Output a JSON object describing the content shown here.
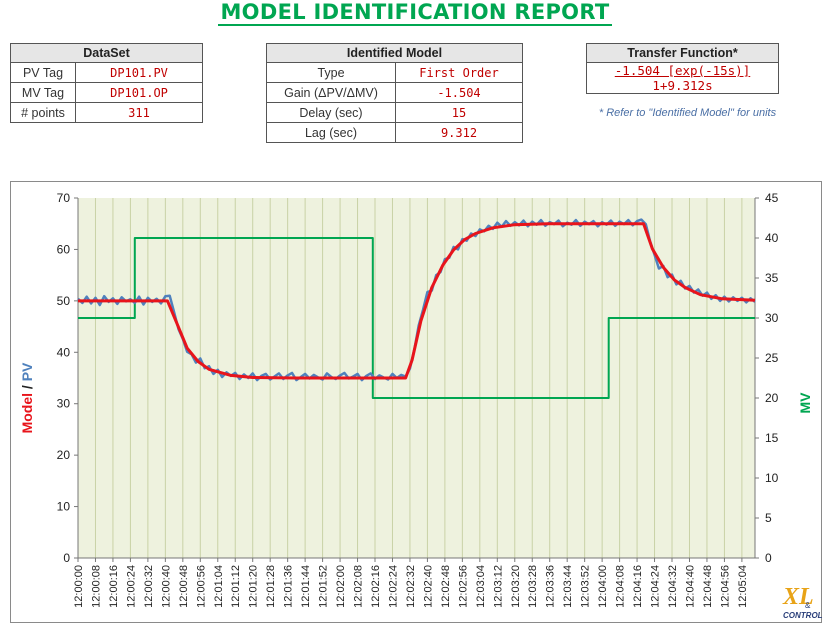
{
  "report": {
    "title": "MODEL IDENTIFICATION REPORT"
  },
  "dataset": {
    "header": "DataSet",
    "rows": [
      {
        "label": "PV Tag",
        "value": "DP101.PV"
      },
      {
        "label": "MV Tag",
        "value": "DP101.OP"
      },
      {
        "label": "# points",
        "value": "311"
      }
    ]
  },
  "identified_model": {
    "header": "Identified Model",
    "rows": [
      {
        "label": "Type",
        "value": "First Order"
      },
      {
        "label": "Gain (ΔPV/ΔMV)",
        "value": "-1.504"
      },
      {
        "label": "Delay (sec)",
        "value": "15"
      },
      {
        "label": "Lag (sec)",
        "value": "9.312"
      }
    ]
  },
  "transfer_function": {
    "header": "Transfer Function*",
    "numerator": "-1.504 [exp(-15s)]",
    "denominator": "1+9.312s",
    "note": "* Refer to \"Identified Model\" for units"
  },
  "colors": {
    "title": "#00a651",
    "plot_bg": "#eef2de",
    "model": "#e8141b",
    "pv": "#4f81bd",
    "mv": "#00a651",
    "value_text": "#c00000"
  },
  "logo": {
    "text_top": "XL",
    "text_bottom": "CONTROL",
    "amp": "&"
  },
  "chart_data": {
    "type": "line",
    "ylabel_left_parts": [
      "Model",
      " / ",
      "PV"
    ],
    "ylabel_right": "MV",
    "ylim_left": [
      0,
      70
    ],
    "ylim_right": [
      0,
      45
    ],
    "yticks_left": [
      0,
      10,
      20,
      30,
      40,
      50,
      60,
      70
    ],
    "yticks_right": [
      0,
      5,
      10,
      15,
      20,
      25,
      30,
      35,
      40,
      45
    ],
    "x_seconds_range": [
      0,
      310
    ],
    "xtick_labels": [
      "12:00:00",
      "12:00:08",
      "12:00:16",
      "12:00:24",
      "12:00:32",
      "12:00:40",
      "12:00:48",
      "12:00:56",
      "12:01:04",
      "12:01:12",
      "12:01:20",
      "12:01:28",
      "12:01:36",
      "12:01:44",
      "12:01:52",
      "12:02:00",
      "12:02:08",
      "12:02:16",
      "12:02:24",
      "12:02:32",
      "12:02:40",
      "12:02:48",
      "12:02:56",
      "12:03:04",
      "12:03:12",
      "12:03:20",
      "12:03:28",
      "12:03:36",
      "12:03:44",
      "12:03:52",
      "12:04:00",
      "12:04:08",
      "12:04:16",
      "12:04:24",
      "12:04:32",
      "12:04:40",
      "12:04:48",
      "12:04:56",
      "12:05:04"
    ],
    "grid": "vertical",
    "series": [
      {
        "name": "MV",
        "axis": "right",
        "points": [
          [
            0,
            30
          ],
          [
            26,
            30
          ],
          [
            26,
            40
          ],
          [
            135,
            40
          ],
          [
            135,
            20
          ],
          [
            243,
            20
          ],
          [
            243,
            30
          ],
          [
            310,
            30
          ]
        ]
      },
      {
        "name": "Model",
        "axis": "left",
        "points": [
          [
            0,
            50
          ],
          [
            41,
            50
          ],
          [
            45,
            45.9
          ],
          [
            50,
            40.8
          ],
          [
            55,
            38.2
          ],
          [
            60,
            36.7
          ],
          [
            70,
            35.5
          ],
          [
            80,
            35.1
          ],
          [
            100,
            35
          ],
          [
            150,
            35
          ],
          [
            153,
            38.5
          ],
          [
            157,
            46.1
          ],
          [
            162,
            52.6
          ],
          [
            167,
            56.9
          ],
          [
            172,
            59.9
          ],
          [
            177,
            61.9
          ],
          [
            182,
            63.1
          ],
          [
            190,
            64.2
          ],
          [
            200,
            64.8
          ],
          [
            215,
            65
          ],
          [
            259,
            65
          ],
          [
            263,
            60.1
          ],
          [
            268,
            56.5
          ],
          [
            273,
            54.1
          ],
          [
            278,
            52.6
          ],
          [
            285,
            51.2
          ],
          [
            295,
            50.4
          ],
          [
            310,
            50.1
          ]
        ]
      },
      {
        "name": "PV",
        "axis": "left",
        "points": [
          [
            0,
            50.4
          ],
          [
            2,
            49.6
          ],
          [
            4,
            50.8
          ],
          [
            6,
            49.5
          ],
          [
            8,
            50.6
          ],
          [
            10,
            49.2
          ],
          [
            12,
            50.9
          ],
          [
            14,
            49.8
          ],
          [
            16,
            50.5
          ],
          [
            18,
            49.4
          ],
          [
            20,
            50.7
          ],
          [
            22,
            49.9
          ],
          [
            24,
            50.3
          ],
          [
            26,
            49.6
          ],
          [
            28,
            50.8
          ],
          [
            30,
            49.3
          ],
          [
            32,
            50.6
          ],
          [
            34,
            49.8
          ],
          [
            36,
            50.4
          ],
          [
            38,
            49.5
          ],
          [
            40,
            50.9
          ],
          [
            42,
            51.0
          ],
          [
            44,
            47.8
          ],
          [
            46,
            44.5
          ],
          [
            48,
            42.6
          ],
          [
            50,
            40.1
          ],
          [
            52,
            39.6
          ],
          [
            54,
            38.0
          ],
          [
            56,
            38.8
          ],
          [
            58,
            36.9
          ],
          [
            60,
            37.3
          ],
          [
            62,
            35.8
          ],
          [
            64,
            36.6
          ],
          [
            66,
            35.2
          ],
          [
            68,
            36.1
          ],
          [
            70,
            35.4
          ],
          [
            72,
            36.0
          ],
          [
            74,
            34.8
          ],
          [
            76,
            35.7
          ],
          [
            78,
            35.0
          ],
          [
            80,
            35.9
          ],
          [
            82,
            34.6
          ],
          [
            84,
            35.4
          ],
          [
            86,
            35.8
          ],
          [
            88,
            34.7
          ],
          [
            90,
            35.3
          ],
          [
            92,
            35.9
          ],
          [
            94,
            34.8
          ],
          [
            96,
            35.5
          ],
          [
            98,
            36.0
          ],
          [
            100,
            34.6
          ],
          [
            102,
            35.2
          ],
          [
            104,
            35.8
          ],
          [
            106,
            34.9
          ],
          [
            108,
            35.6
          ],
          [
            110,
            35.1
          ],
          [
            112,
            34.7
          ],
          [
            114,
            35.9
          ],
          [
            116,
            35.2
          ],
          [
            118,
            34.8
          ],
          [
            120,
            35.5
          ],
          [
            122,
            36.0
          ],
          [
            124,
            34.9
          ],
          [
            126,
            35.3
          ],
          [
            128,
            35.8
          ],
          [
            130,
            34.6
          ],
          [
            132,
            35.4
          ],
          [
            134,
            35.9
          ],
          [
            136,
            34.8
          ],
          [
            138,
            35.5
          ],
          [
            140,
            35.1
          ],
          [
            142,
            34.7
          ],
          [
            144,
            35.8
          ],
          [
            146,
            35.0
          ],
          [
            148,
            35.6
          ],
          [
            150,
            35.3
          ],
          [
            152,
            36.8
          ],
          [
            154,
            40.5
          ],
          [
            156,
            45.2
          ],
          [
            158,
            48.3
          ],
          [
            160,
            51.7
          ],
          [
            162,
            52.0
          ],
          [
            164,
            55.0
          ],
          [
            166,
            55.6
          ],
          [
            168,
            58.1
          ],
          [
            170,
            58.4
          ],
          [
            172,
            60.5
          ],
          [
            174,
            60.0
          ],
          [
            176,
            62.0
          ],
          [
            178,
            61.7
          ],
          [
            180,
            63.1
          ],
          [
            182,
            62.6
          ],
          [
            184,
            63.9
          ],
          [
            186,
            63.5
          ],
          [
            188,
            64.6
          ],
          [
            190,
            64.0
          ],
          [
            192,
            65.2
          ],
          [
            194,
            64.4
          ],
          [
            196,
            65.5
          ],
          [
            198,
            64.6
          ],
          [
            200,
            65.3
          ],
          [
            202,
            64.7
          ],
          [
            204,
            65.6
          ],
          [
            206,
            64.5
          ],
          [
            208,
            65.4
          ],
          [
            210,
            64.8
          ],
          [
            212,
            65.7
          ],
          [
            214,
            64.6
          ],
          [
            216,
            65.3
          ],
          [
            218,
            64.9
          ],
          [
            220,
            65.6
          ],
          [
            222,
            64.5
          ],
          [
            224,
            65.2
          ],
          [
            226,
            64.8
          ],
          [
            228,
            65.7
          ],
          [
            230,
            64.6
          ],
          [
            232,
            65.4
          ],
          [
            234,
            64.9
          ],
          [
            236,
            65.5
          ],
          [
            238,
            64.5
          ],
          [
            240,
            65.3
          ],
          [
            242,
            64.8
          ],
          [
            244,
            65.6
          ],
          [
            246,
            64.6
          ],
          [
            248,
            65.4
          ],
          [
            250,
            64.9
          ],
          [
            252,
            65.7
          ],
          [
            254,
            64.7
          ],
          [
            256,
            65.5
          ],
          [
            258,
            65.8
          ],
          [
            260,
            64.9
          ],
          [
            262,
            61.5
          ],
          [
            264,
            59.0
          ],
          [
            266,
            56.3
          ],
          [
            268,
            56.8
          ],
          [
            270,
            54.6
          ],
          [
            272,
            55.1
          ],
          [
            274,
            53.2
          ],
          [
            276,
            53.9
          ],
          [
            278,
            52.4
          ],
          [
            280,
            52.9
          ],
          [
            282,
            51.6
          ],
          [
            284,
            52.2
          ],
          [
            286,
            51.0
          ],
          [
            288,
            51.6
          ],
          [
            290,
            50.4
          ],
          [
            292,
            51.1
          ],
          [
            294,
            50.0
          ],
          [
            296,
            50.8
          ],
          [
            298,
            49.9
          ],
          [
            300,
            50.7
          ],
          [
            302,
            50.0
          ],
          [
            304,
            50.6
          ],
          [
            306,
            49.7
          ],
          [
            308,
            50.5
          ],
          [
            310,
            49.8
          ]
        ]
      }
    ]
  }
}
